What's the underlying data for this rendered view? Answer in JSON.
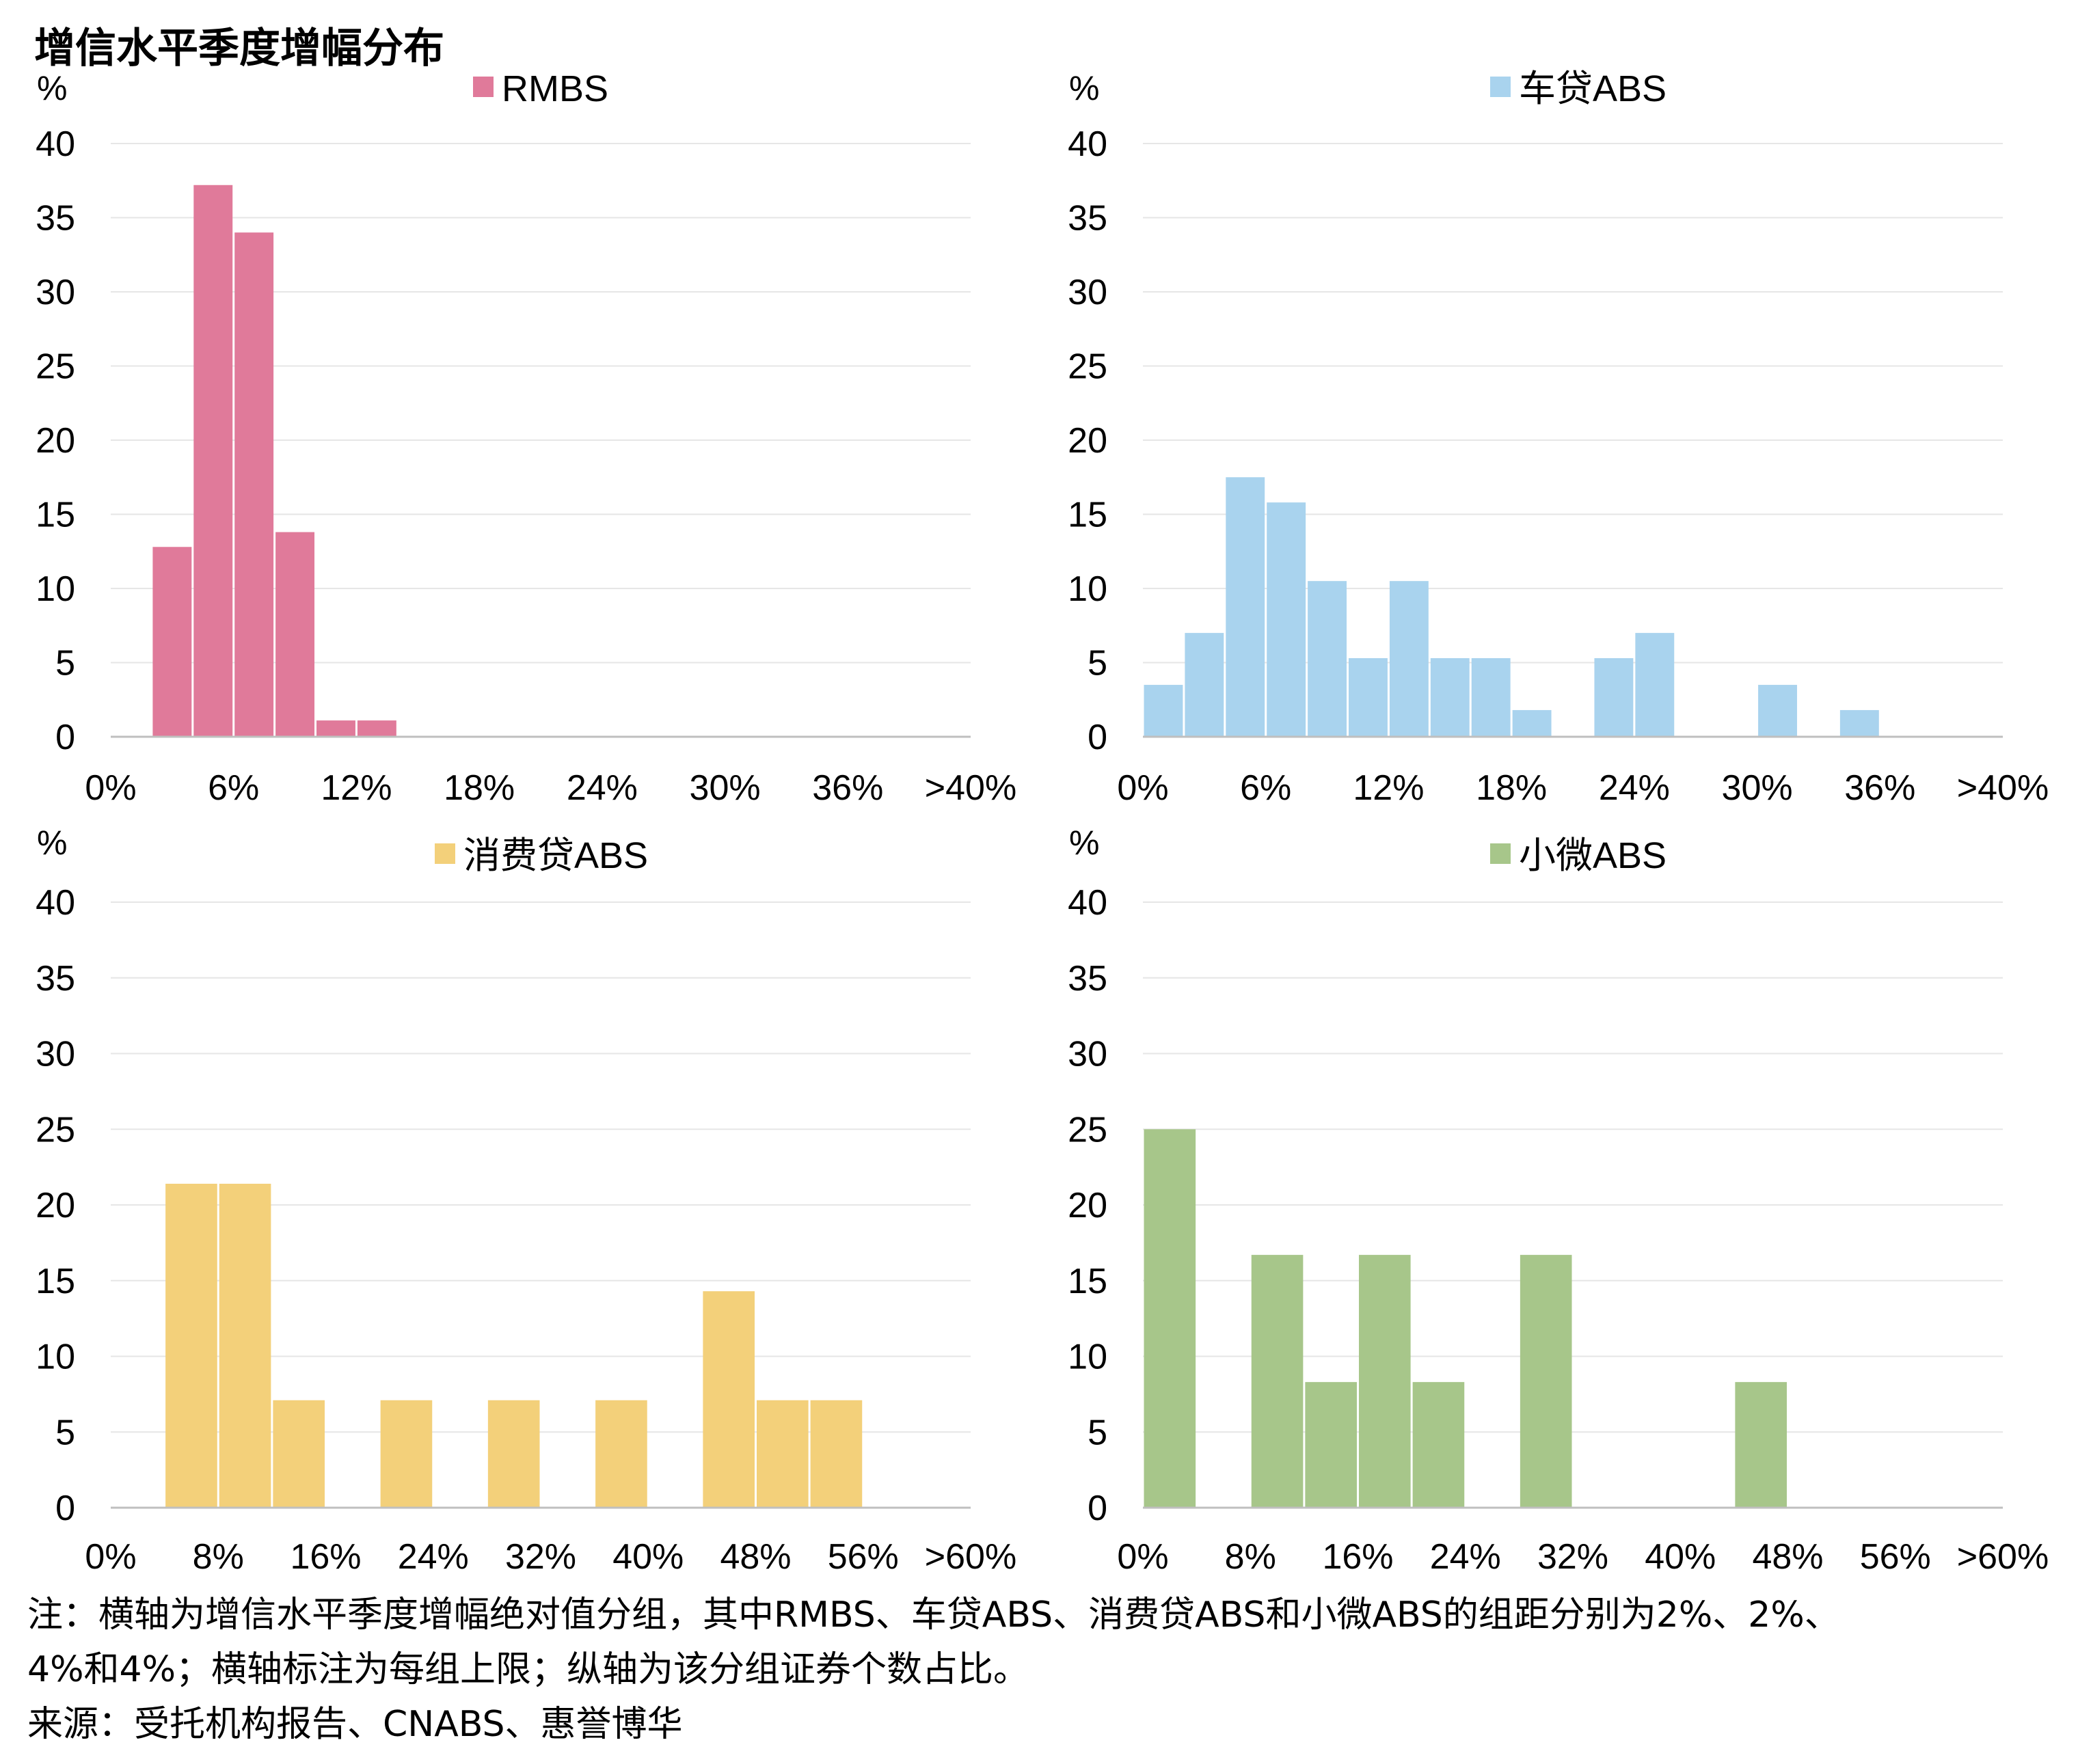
{
  "title": "增信水平季度增幅分布",
  "chart_data": [
    {
      "type": "bar",
      "legend": "RMBS",
      "color": "#E07A9A",
      "ylabel": "%",
      "ylim": [
        0,
        40
      ],
      "yticks": [
        "0",
        "5",
        "10",
        "15",
        "20",
        "25",
        "30",
        "35",
        "40"
      ],
      "xticks": [
        "0%",
        "6%",
        "12%",
        "18%",
        "24%",
        "30%",
        "36%",
        ">40%"
      ],
      "bin_width": 2,
      "values": [
        0,
        12.8,
        37.2,
        34.0,
        13.8,
        1.1,
        1.1,
        0,
        0,
        0,
        0,
        0,
        0,
        0,
        0,
        0,
        0,
        0,
        0,
        0,
        0
      ]
    },
    {
      "type": "bar",
      "legend": "车贷ABS",
      "color": "#A9D3EE",
      "ylabel": "%",
      "ylim": [
        0,
        40
      ],
      "yticks": [
        "0",
        "5",
        "10",
        "15",
        "20",
        "25",
        "30",
        "35",
        "40"
      ],
      "xticks": [
        "0%",
        "6%",
        "12%",
        "18%",
        "24%",
        "30%",
        "36%",
        ">40%"
      ],
      "bin_width": 2,
      "values": [
        3.5,
        7.0,
        17.5,
        15.8,
        10.5,
        5.3,
        10.5,
        5.3,
        5.3,
        1.8,
        0,
        5.3,
        7.0,
        0,
        0,
        3.5,
        0,
        1.8,
        0,
        0,
        0
      ]
    },
    {
      "type": "bar",
      "legend": "消费贷ABS",
      "color": "#F3D07A",
      "ylabel": "%",
      "ylim": [
        0,
        40
      ],
      "yticks": [
        "0",
        "5",
        "10",
        "15",
        "20",
        "25",
        "30",
        "35",
        "40"
      ],
      "xticks": [
        "0%",
        "8%",
        "16%",
        "24%",
        "32%",
        "40%",
        "48%",
        "56%",
        ">60%"
      ],
      "bin_width": 4,
      "values": [
        0,
        21.4,
        21.4,
        7.1,
        0,
        7.1,
        0,
        7.1,
        0,
        7.1,
        0,
        14.3,
        7.1,
        7.1,
        0,
        0
      ]
    },
    {
      "type": "bar",
      "legend": "小微ABS",
      "color": "#A7C68A",
      "ylabel": "%",
      "ylim": [
        0,
        40
      ],
      "yticks": [
        "0",
        "5",
        "10",
        "15",
        "20",
        "25",
        "30",
        "35",
        "40"
      ],
      "xticks": [
        "0%",
        "8%",
        "16%",
        "24%",
        "32%",
        "40%",
        "48%",
        "56%",
        ">60%"
      ],
      "bin_width": 4,
      "values": [
        25.0,
        0,
        16.7,
        8.3,
        16.7,
        8.3,
        0,
        16.7,
        0,
        0,
        0,
        8.3,
        0,
        0,
        0,
        0
      ]
    }
  ],
  "footnote": {
    "line1": "注：横轴为增信水平季度增幅绝对值分组，其中RMBS、车贷ABS、消费贷ABS和小微ABS的组距分别为2%、2%、",
    "line2": "4%和4%；横轴标注为每组上限；纵轴为该分组证券个数占比。",
    "source": "来源：受托机构报告、CNABS、惠誉博华"
  }
}
